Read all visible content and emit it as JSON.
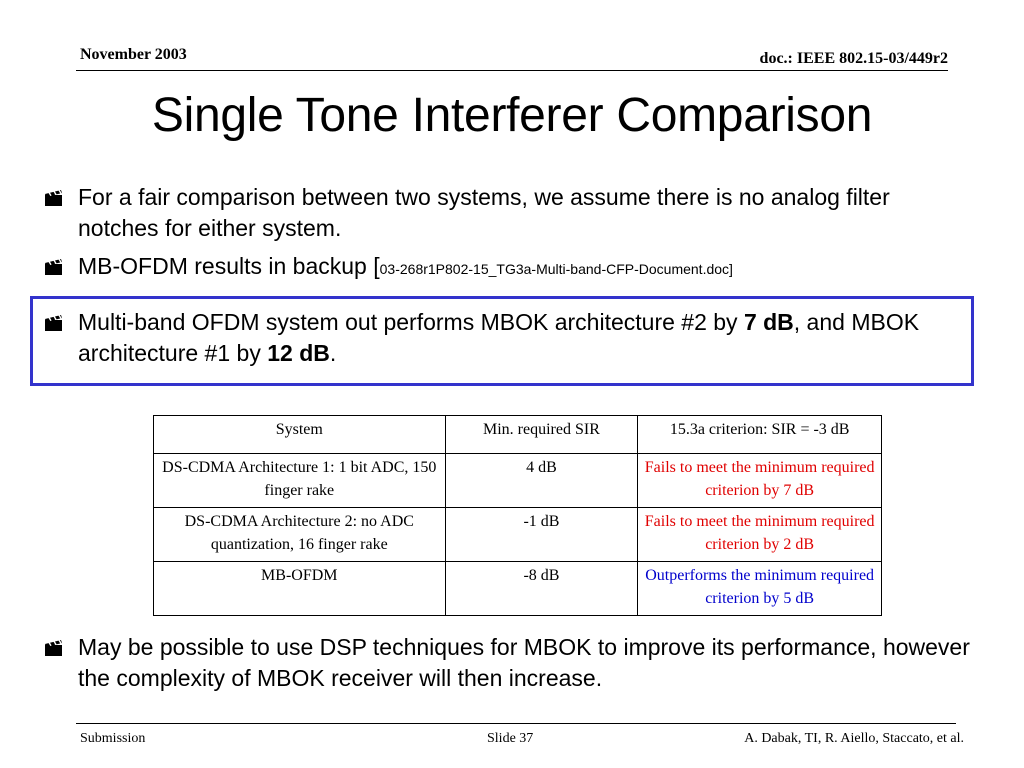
{
  "header": {
    "date": "November 2003",
    "doc_id": "doc.: IEEE 802.15-03/449r2"
  },
  "title": "Single Tone Interferer Comparison",
  "bullets": {
    "b1": "For a fair comparison between two systems, we assume there is no analog filter notches for either system.",
    "b2_main": "MB-OFDM results in backup [",
    "b2_ref": "03-268r1P802-15_TG3a-Multi-band-CFP-Document.doc]",
    "b3_part1": "Multi-band OFDM system out performs MBOK architecture #2 by ",
    "b3_bold1": "7 dB",
    "b3_part2": ", and MBOK architecture #1 by ",
    "b3_bold2": "12 dB",
    "b3_part3": ".",
    "b4": "May be possible to use DSP techniques for MBOK to improve its performance, however the complexity of MBOK receiver will then increase."
  },
  "table": {
    "headers": [
      "System",
      "Min. required SIR",
      "15.3a criterion: SIR = -3 dB"
    ],
    "rows": [
      [
        "DS-CDMA Architecture 1: 1 bit ADC, 150 finger rake",
        "4 dB",
        "Fails to meet the minimum required criterion by 7 dB"
      ],
      [
        "DS-CDMA Architecture 2: no ADC quantization, 16 finger rake",
        "-1 dB",
        "Fails to meet the minimum required criterion by 2 dB"
      ],
      [
        "MB-OFDM",
        "-8 dB",
        "Outperforms the minimum required criterion by 5 dB"
      ]
    ]
  },
  "footer": {
    "left": "Submission",
    "center": "Slide 37",
    "right": "A. Dabak, TI, R. Aiello, Staccato, et al."
  },
  "colors": {
    "highlight_box": "#3333cc",
    "fail_text": "#e00000",
    "pass_text": "#0000cc"
  },
  "icons": {
    "bullet": "clapperboard-icon"
  }
}
